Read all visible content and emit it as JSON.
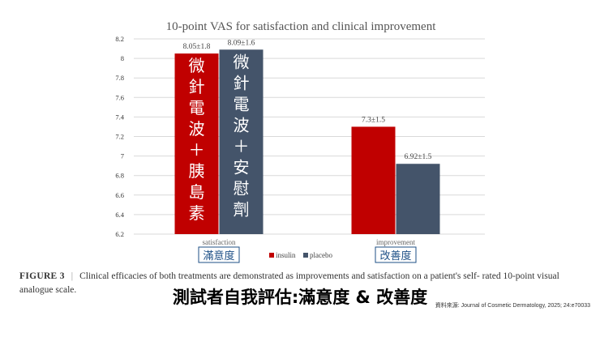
{
  "chart_data": {
    "type": "bar",
    "title": "10-point VAS for satisfaction and clinical improvement",
    "categories": [
      "satisfaction",
      "improvement"
    ],
    "category_tags_zh": [
      "滿意度",
      "改善度"
    ],
    "series": [
      {
        "name": "insulin",
        "color": "#c00000",
        "values": [
          8.05,
          7.3
        ],
        "labels": [
          "8.05±1.8",
          "7.3±1.5"
        ],
        "bar_text": "微針電波＋胰島素"
      },
      {
        "name": "placebo",
        "color": "#44546a",
        "values": [
          8.09,
          6.92
        ],
        "labels": [
          "8.09±1.6",
          "6.92±1.5"
        ],
        "bar_text": "微針電波＋安慰劑"
      }
    ],
    "ylim": [
      6.2,
      8.2
    ],
    "yticks": [
      "8.2",
      "8",
      "7.8",
      "7.6",
      "7.4",
      "7.2",
      "7",
      "6.8",
      "6.6",
      "6.4",
      "6.2"
    ],
    "grid": true,
    "legend": "bottom-center",
    "xlabel": "",
    "ylabel": ""
  },
  "caption": {
    "figure_label": "FIGURE 3",
    "separator": "|",
    "text": "Clinical efficacies of both treatments are demonstrated as improvements and satisfaction on a patient's self- rated 10-point visual analogue scale."
  },
  "footer_title": "測試者自我評估:滿意度 & 改善度",
  "source": "資料來源: Journal of Cosmetic Dermatology, 2025; 24:e70033"
}
